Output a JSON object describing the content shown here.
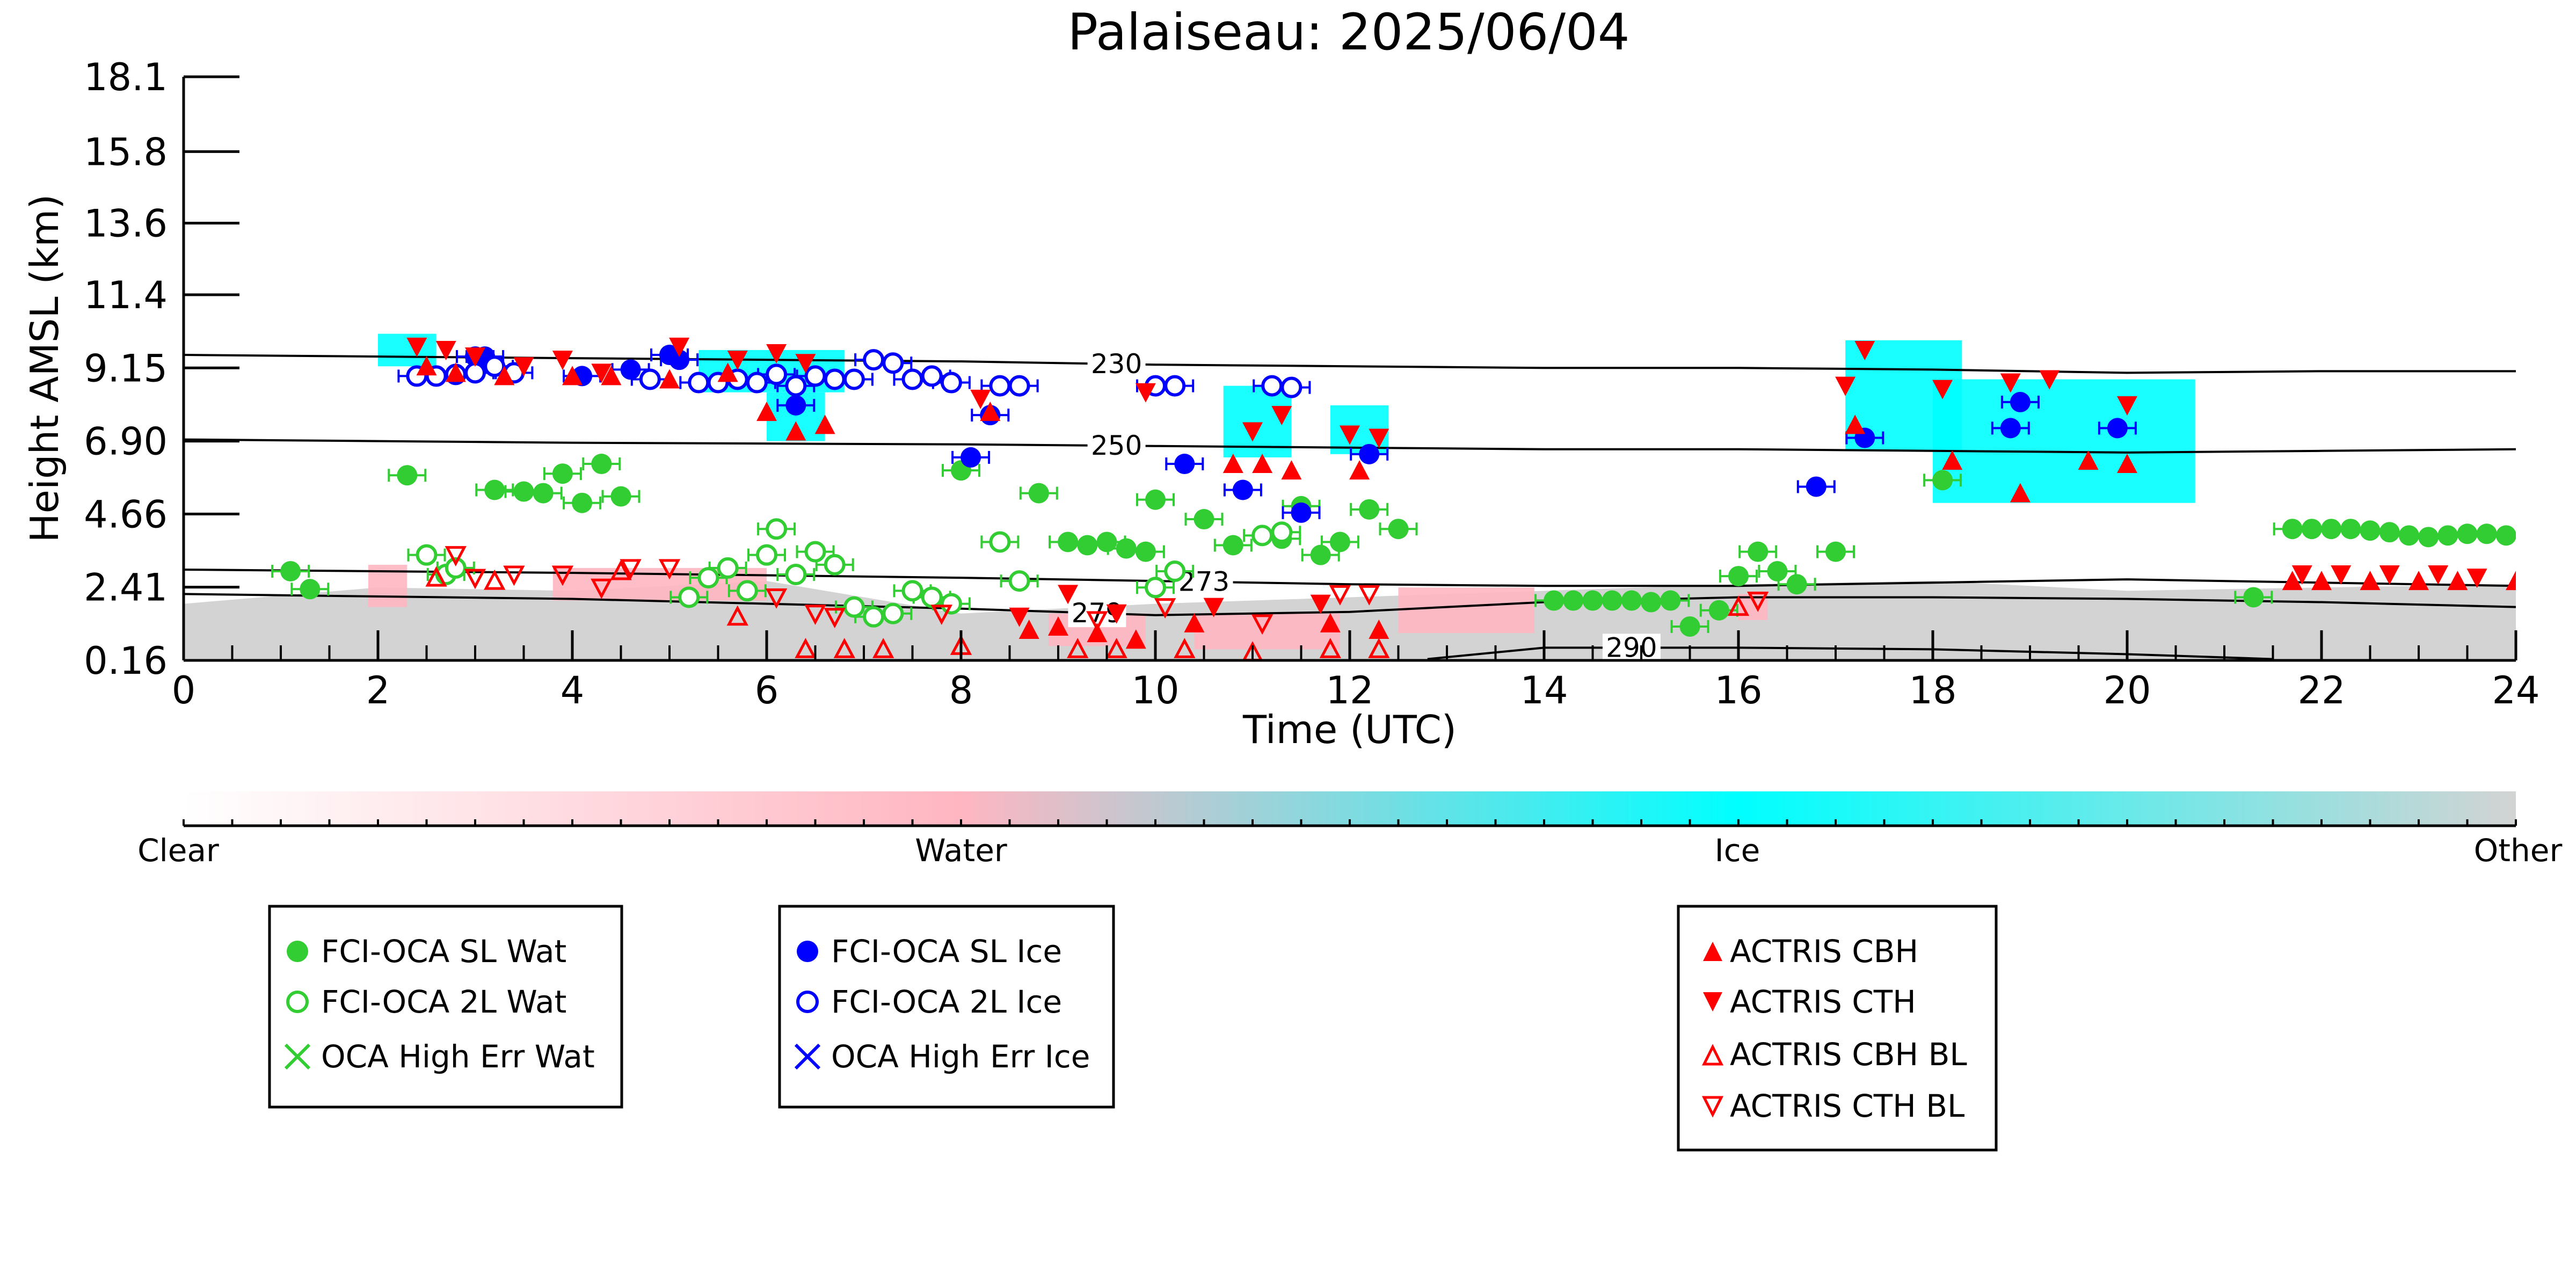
{
  "chart_data": {
    "type": "scatter",
    "title": "Palaiseau: 2025/06/04",
    "xlabel": "Time (UTC)",
    "ylabel": "Height AMSL (km)",
    "xlim": [
      0,
      24
    ],
    "ylim": [
      0.16,
      18.1
    ],
    "xticks": [
      0,
      2,
      4,
      6,
      8,
      10,
      12,
      14,
      16,
      18,
      20,
      22,
      24
    ],
    "yticks": [
      0.16,
      2.41,
      4.66,
      6.9,
      9.15,
      11.4,
      13.6,
      15.8,
      18.1
    ],
    "ytick_labels": [
      "0.16",
      "2.41",
      "4.66",
      "6.90",
      "9.15",
      "11.4",
      "13.6",
      "15.8",
      "18.1"
    ],
    "colorbar": {
      "labels": [
        "Clear",
        "Water",
        "Ice",
        "Other"
      ],
      "colors": [
        "#ffffff",
        "#ffb6c1",
        "#00ffff",
        "#d3d3d3"
      ]
    },
    "background_layers": [
      {
        "kind": "other",
        "color": "#d3d3d3",
        "x": [
          0,
          2,
          4,
          6,
          8,
          10,
          12,
          14,
          16,
          18,
          20,
          22,
          24
        ],
        "top": [
          1.9,
          2.4,
          2.3,
          2.6,
          1.6,
          1.9,
          2.1,
          2.3,
          2.5,
          2.6,
          2.3,
          2.4,
          2.5
        ]
      },
      {
        "kind": "water",
        "color": "#ffb6c1",
        "segments": [
          [
            1.9,
            2.3,
            1.8,
            3.1
          ],
          [
            3.8,
            6.0,
            2.0,
            3.0
          ],
          [
            8.9,
            9.9,
            0.6,
            1.6
          ],
          [
            10.4,
            11.9,
            0.5,
            1.6
          ],
          [
            12.5,
            13.9,
            1.0,
            2.4
          ],
          [
            16.0,
            16.3,
            1.4,
            2.2
          ]
        ]
      },
      {
        "kind": "ice",
        "color": "#00ffff",
        "segments": [
          [
            2.0,
            2.6,
            9.2,
            10.2
          ],
          [
            5.3,
            6.8,
            8.4,
            9.7
          ],
          [
            6.0,
            6.6,
            6.9,
            8.4
          ],
          [
            10.7,
            11.4,
            6.4,
            8.6
          ],
          [
            11.8,
            12.4,
            6.5,
            8.0
          ],
          [
            17.1,
            18.3,
            6.6,
            10.0
          ],
          [
            18.0,
            20.7,
            5.0,
            8.8
          ]
        ]
      }
    ],
    "contours": [
      {
        "label": "230",
        "label_x": 9.6,
        "x": [
          0,
          4,
          8,
          10,
          12,
          14,
          16,
          18,
          20,
          22,
          24
        ],
        "y": [
          9.55,
          9.45,
          9.35,
          9.25,
          9.2,
          9.15,
          9.15,
          9.1,
          9.0,
          9.05,
          9.05
        ]
      },
      {
        "label": "250",
        "label_x": 9.6,
        "x": [
          0,
          4,
          8,
          10,
          12,
          14,
          16,
          18,
          20,
          22,
          24
        ],
        "y": [
          6.95,
          6.85,
          6.8,
          6.75,
          6.7,
          6.65,
          6.65,
          6.6,
          6.55,
          6.6,
          6.65
        ]
      },
      {
        "label": "273",
        "label_x": 10.5,
        "x": [
          0,
          4,
          8,
          10,
          12,
          14,
          15.5,
          16,
          18,
          20,
          22,
          24
        ],
        "y": [
          2.95,
          2.85,
          2.7,
          2.6,
          2.5,
          2.45,
          2.45,
          2.45,
          2.55,
          2.65,
          2.55,
          2.45
        ]
      },
      {
        "label": "279",
        "label_x": 9.4,
        "x": [
          0,
          4,
          8,
          10,
          12,
          14,
          16,
          18,
          20,
          22,
          24
        ],
        "y": [
          2.2,
          2.05,
          1.75,
          1.55,
          1.65,
          1.95,
          2.1,
          2.1,
          2.05,
          1.95,
          1.8
        ]
      },
      {
        "label": "290",
        "label_x": 14.9,
        "x": [
          12.8,
          14,
          16,
          18,
          20,
          21.5
        ],
        "y": [
          0.2,
          0.55,
          0.55,
          0.5,
          0.35,
          0.2
        ]
      }
    ],
    "series": [
      {
        "name": "FCI-OCA SL Wat",
        "marker": "circle-filled",
        "color": "#32cd32",
        "x": [
          1.1,
          1.3,
          2.3,
          3.2,
          3.5,
          3.7,
          3.9,
          4.1,
          4.3,
          4.5,
          8.0,
          8.8,
          9.1,
          9.3,
          9.5,
          9.7,
          9.9,
          10.0,
          10.5,
          10.8,
          11.3,
          11.5,
          11.7,
          11.9,
          12.2,
          12.5,
          14.1,
          14.3,
          14.5,
          14.7,
          14.9,
          15.1,
          15.3,
          15.5,
          15.8,
          16.0,
          16.2,
          16.4,
          16.6,
          17.0,
          18.1,
          21.3,
          21.7,
          21.9,
          22.1,
          22.3,
          22.5,
          22.7,
          22.9,
          23.1,
          23.3,
          23.5,
          23.7,
          23.9
        ],
        "y": [
          2.9,
          2.35,
          5.85,
          5.4,
          5.35,
          5.3,
          5.9,
          5.0,
          6.2,
          5.2,
          6.0,
          5.3,
          3.8,
          3.7,
          3.8,
          3.6,
          3.5,
          5.1,
          4.5,
          3.7,
          3.9,
          4.9,
          3.4,
          3.8,
          4.8,
          4.2,
          2.0,
          2.0,
          2.0,
          2.0,
          2.0,
          1.95,
          2.0,
          1.2,
          1.7,
          2.75,
          3.5,
          2.9,
          2.5,
          3.5,
          5.7,
          2.1,
          4.2,
          4.2,
          4.2,
          4.2,
          4.15,
          4.1,
          4.0,
          3.95,
          4.0,
          4.05,
          4.05,
          4.0
        ]
      },
      {
        "name": "FCI-OCA 2L Wat",
        "marker": "circle-open",
        "color": "#32cd32",
        "x": [
          2.5,
          2.7,
          2.8,
          5.2,
          5.4,
          5.6,
          5.8,
          6.0,
          6.1,
          6.3,
          6.5,
          6.7,
          6.9,
          7.1,
          7.3,
          7.5,
          7.7,
          7.9,
          8.4,
          8.6,
          10.0,
          10.2,
          11.1,
          11.3
        ],
        "y": [
          3.4,
          2.8,
          3.0,
          2.1,
          2.7,
          3.0,
          2.3,
          3.4,
          4.2,
          2.8,
          3.5,
          3.1,
          1.8,
          1.5,
          1.6,
          2.3,
          2.1,
          1.9,
          3.8,
          2.6,
          2.4,
          2.9,
          4.0,
          4.1
        ]
      },
      {
        "name": "OCA High Err Wat",
        "marker": "x",
        "color": "#32cd32",
        "x": [],
        "y": []
      },
      {
        "name": "FCI-OCA SL Ice",
        "marker": "circle-filled",
        "color": "#0000ff",
        "x": [
          3.0,
          3.1,
          4.1,
          4.6,
          5.0,
          5.1,
          6.3,
          8.1,
          8.3,
          10.3,
          10.9,
          11.5,
          12.2,
          16.8,
          17.3,
          18.8,
          18.9,
          19.9
        ],
        "y": [
          9.5,
          9.5,
          8.9,
          9.1,
          9.55,
          9.4,
          8.0,
          6.4,
          7.7,
          6.2,
          5.4,
          4.7,
          6.5,
          5.5,
          7.0,
          7.3,
          8.1,
          7.3
        ]
      },
      {
        "name": "FCI-OCA 2L Ice",
        "marker": "circle-open",
        "color": "#0000ff",
        "x": [
          2.4,
          2.6,
          2.8,
          3.0,
          3.2,
          3.4,
          4.8,
          5.3,
          5.5,
          5.7,
          5.9,
          6.1,
          6.3,
          6.5,
          6.7,
          6.9,
          7.1,
          7.3,
          7.5,
          7.7,
          7.9,
          8.4,
          8.6,
          10.0,
          10.2,
          11.2,
          11.4
        ],
        "y": [
          8.9,
          8.9,
          8.95,
          9.0,
          9.2,
          9.0,
          8.8,
          8.7,
          8.7,
          8.8,
          8.7,
          8.95,
          8.6,
          8.9,
          8.8,
          8.8,
          9.4,
          9.3,
          8.8,
          8.9,
          8.7,
          8.6,
          8.6,
          8.6,
          8.6,
          8.6,
          8.55
        ]
      },
      {
        "name": "OCA High Err Ice",
        "marker": "x",
        "color": "#0000ff",
        "x": [],
        "y": []
      },
      {
        "name": "ACTRIS CBH",
        "marker": "triangle-up-filled",
        "color": "#ff0000",
        "x": [
          2.5,
          2.8,
          3.3,
          4.0,
          4.4,
          5.0,
          5.6,
          6.0,
          6.3,
          6.6,
          8.3,
          8.7,
          9.0,
          9.4,
          9.8,
          10.4,
          10.8,
          11.1,
          11.4,
          11.8,
          12.1,
          12.3,
          17.2,
          18.2,
          18.9,
          19.6,
          20.0,
          21.7,
          22.0,
          22.5,
          23.0,
          23.4,
          24.0
        ],
        "y": [
          9.2,
          9.0,
          8.9,
          8.9,
          8.9,
          8.8,
          9.0,
          7.8,
          7.2,
          7.4,
          7.8,
          1.1,
          1.2,
          1.0,
          0.8,
          1.3,
          6.2,
          6.2,
          6.0,
          1.3,
          6.0,
          1.1,
          7.4,
          6.3,
          5.3,
          6.3,
          6.2,
          2.6,
          2.6,
          2.6,
          2.6,
          2.6,
          2.6
        ]
      },
      {
        "name": "ACTRIS CTH",
        "marker": "triangle-down-filled",
        "color": "#ff0000",
        "x": [
          2.4,
          2.7,
          3.0,
          3.5,
          3.9,
          4.3,
          5.1,
          5.7,
          6.1,
          6.4,
          8.2,
          8.6,
          9.1,
          9.6,
          9.9,
          10.6,
          11.0,
          11.3,
          11.7,
          12.0,
          12.3,
          17.1,
          17.3,
          18.1,
          18.8,
          19.2,
          20.0,
          21.8,
          22.2,
          22.7,
          23.2,
          23.6
        ],
        "y": [
          9.8,
          9.7,
          9.5,
          9.2,
          9.4,
          9.0,
          9.8,
          9.4,
          9.6,
          9.3,
          8.2,
          1.5,
          2.2,
          1.6,
          8.4,
          1.8,
          7.2,
          7.7,
          1.9,
          7.1,
          7.0,
          8.6,
          9.7,
          8.5,
          8.7,
          8.8,
          8.0,
          2.8,
          2.8,
          2.8,
          2.8,
          2.7
        ]
      },
      {
        "name": "ACTRIS CBH BL",
        "marker": "triangle-up-open",
        "color": "#ff0000",
        "x": [
          2.6,
          3.2,
          4.5,
          5.7,
          6.4,
          6.8,
          7.2,
          8.0,
          9.2,
          9.6,
          10.3,
          11.0,
          11.8,
          12.3,
          16.0
        ],
        "y": [
          2.7,
          2.6,
          2.9,
          1.5,
          0.5,
          0.5,
          0.5,
          0.6,
          0.5,
          0.5,
          0.5,
          0.4,
          0.5,
          0.5,
          1.8
        ]
      },
      {
        "name": "ACTRIS CTH BL",
        "marker": "triangle-down-open",
        "color": "#ff0000",
        "x": [
          2.8,
          3.0,
          3.4,
          3.9,
          4.3,
          4.6,
          5.0,
          6.1,
          6.5,
          6.7,
          7.8,
          9.4,
          10.1,
          11.1,
          11.9,
          12.2,
          16.2
        ],
        "y": [
          3.4,
          2.7,
          2.8,
          2.8,
          2.4,
          3.0,
          3.0,
          2.1,
          1.6,
          1.5,
          1.6,
          1.4,
          1.8,
          1.3,
          2.2,
          2.2,
          2.0
        ]
      }
    ],
    "legends": [
      {
        "entries": [
          "FCI-OCA SL Wat",
          "FCI-OCA 2L Wat",
          "OCA High Err Wat"
        ]
      },
      {
        "entries": [
          "FCI-OCA SL Ice",
          "FCI-OCA 2L Ice",
          "OCA High Err Ice"
        ]
      },
      {
        "entries": [
          "ACTRIS CBH",
          "ACTRIS CTH",
          "ACTRIS CBH BL",
          "ACTRIS CTH BL"
        ]
      }
    ]
  }
}
